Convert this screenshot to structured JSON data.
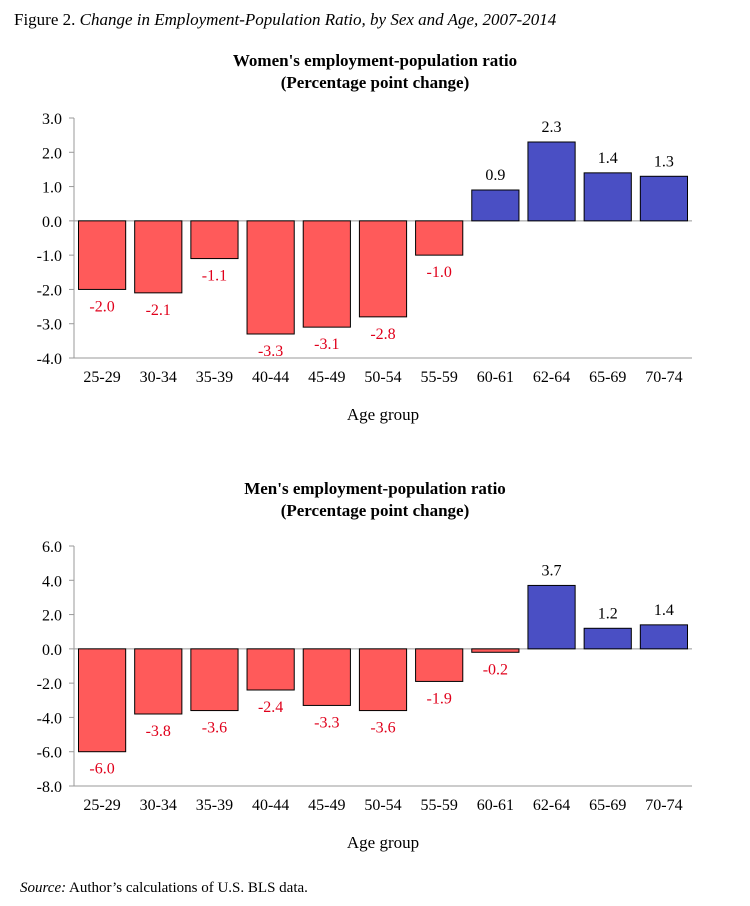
{
  "figure": {
    "number_label": "Figure 2.",
    "title": "Change in Employment-Population Ratio, by Sex and Age, 2007-2014"
  },
  "source": {
    "label": "Source:",
    "text": "Author’s calculations of U.S. BLS data."
  },
  "colors": {
    "negative": "#ff5a5a",
    "positive": "#4a4fc4",
    "bar_stroke": "#000000",
    "negative_label": "#e0001b",
    "positive_label": "#000000"
  },
  "chart_data": [
    {
      "type": "bar",
      "title": "Women's employment-population ratio",
      "subtitle": "(Percentage point change)",
      "xlabel": "Age group",
      "ylabel": "",
      "categories": [
        "25-29",
        "30-34",
        "35-39",
        "40-44",
        "45-49",
        "50-54",
        "55-59",
        "60-61",
        "62-64",
        "65-69",
        "70-74"
      ],
      "values": [
        -2.0,
        -2.1,
        -1.1,
        -3.3,
        -3.1,
        -2.8,
        -1.0,
        0.9,
        2.3,
        1.4,
        1.3
      ],
      "value_labels": [
        "-2.0",
        "-2.1",
        "-1.1",
        "-3.3",
        "-3.1",
        "-2.8",
        "-1.0",
        "0.9",
        "2.3",
        "1.4",
        "1.3"
      ],
      "ylim": [
        -4.0,
        3.0
      ],
      "yticks": [
        3.0,
        2.0,
        1.0,
        0.0,
        -1.0,
        -2.0,
        -3.0,
        -4.0
      ],
      "ytick_labels": [
        "3.0",
        "2.0",
        "1.0",
        "0.0",
        "-1.0",
        "-2.0",
        "-3.0",
        "-4.0"
      ],
      "grid": false,
      "legend": "none"
    },
    {
      "type": "bar",
      "title": "Men's employment-population ratio",
      "subtitle": "(Percentage point change)",
      "xlabel": "Age group",
      "ylabel": "",
      "categories": [
        "25-29",
        "30-34",
        "35-39",
        "40-44",
        "45-49",
        "50-54",
        "55-59",
        "60-61",
        "62-64",
        "65-69",
        "70-74"
      ],
      "values": [
        -6.0,
        -3.8,
        -3.6,
        -2.4,
        -3.3,
        -3.6,
        -1.9,
        -0.2,
        3.7,
        1.2,
        1.4
      ],
      "value_labels": [
        "-6.0",
        "-3.8",
        "-3.6",
        "-2.4",
        "-3.3",
        "-3.6",
        "-1.9",
        "-0.2",
        "3.7",
        "1.2",
        "1.4"
      ],
      "ylim": [
        -8.0,
        6.0
      ],
      "yticks": [
        6.0,
        4.0,
        2.0,
        0.0,
        -2.0,
        -4.0,
        -6.0,
        -8.0
      ],
      "ytick_labels": [
        "6.0",
        "4.0",
        "2.0",
        "0.0",
        "-2.0",
        "-4.0",
        "-6.0",
        "-8.0"
      ],
      "grid": false,
      "legend": "none"
    }
  ]
}
